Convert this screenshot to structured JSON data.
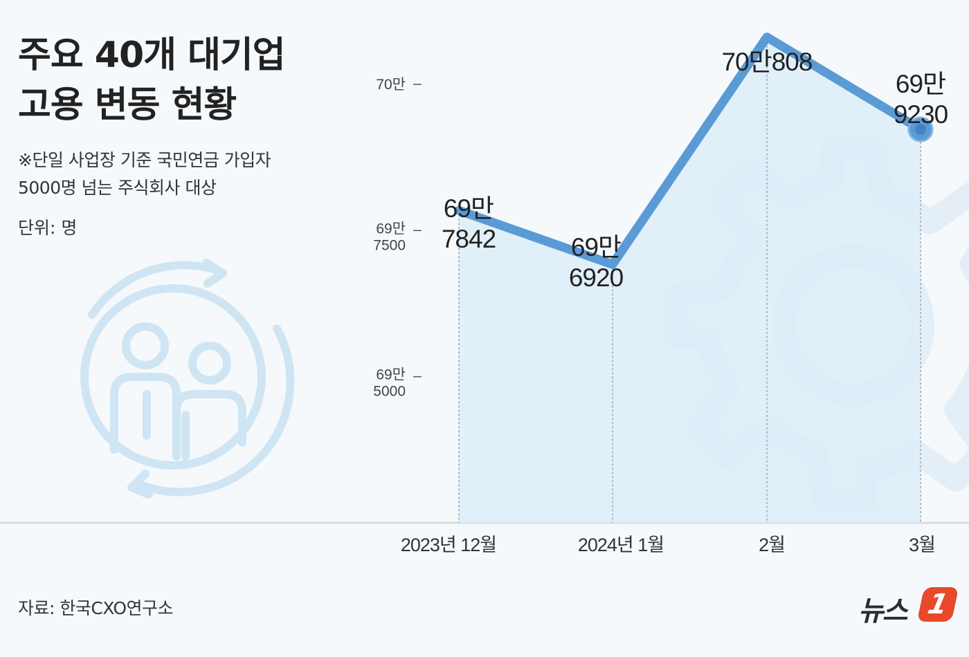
{
  "header": {
    "title_line1": "주요 40개 대기업",
    "title_line2": "고용 변동 현황",
    "note_line1": "※단일 사업장 기준 국민연금 가입자",
    "note_line2": "5000명 넘는 주식회사 대상",
    "unit": "단위: 명"
  },
  "footer": {
    "source": "자료: 한국CXO연구소",
    "logo_text": "뉴스",
    "logo_badge": "1"
  },
  "icons": {
    "people": "people-cycle-icon",
    "gear": "gear-icon"
  },
  "colors": {
    "line": "#5b9bd5",
    "fill": "#dcecf8",
    "icon": "#cfe5f4",
    "background": "#f5f9fc"
  },
  "chart_data": {
    "type": "line",
    "x": [
      "2023년 12월",
      "2024년 1월",
      "2월",
      "3월"
    ],
    "values": [
      697842,
      696920,
      700808,
      699230
    ],
    "data_labels": [
      [
        "69만",
        "7842"
      ],
      [
        "69만",
        "6920"
      ],
      [
        "70만808"
      ],
      [
        "69만",
        "9230"
      ]
    ],
    "y_ticks": [
      {
        "value": 700000,
        "label": [
          "70만"
        ]
      },
      {
        "value": 697500,
        "label": [
          "69만",
          "7500"
        ]
      },
      {
        "value": 695000,
        "label": [
          "69만",
          "5000"
        ]
      }
    ],
    "ylim": [
      692500,
      700000
    ],
    "area_fill": true,
    "grid": false
  }
}
